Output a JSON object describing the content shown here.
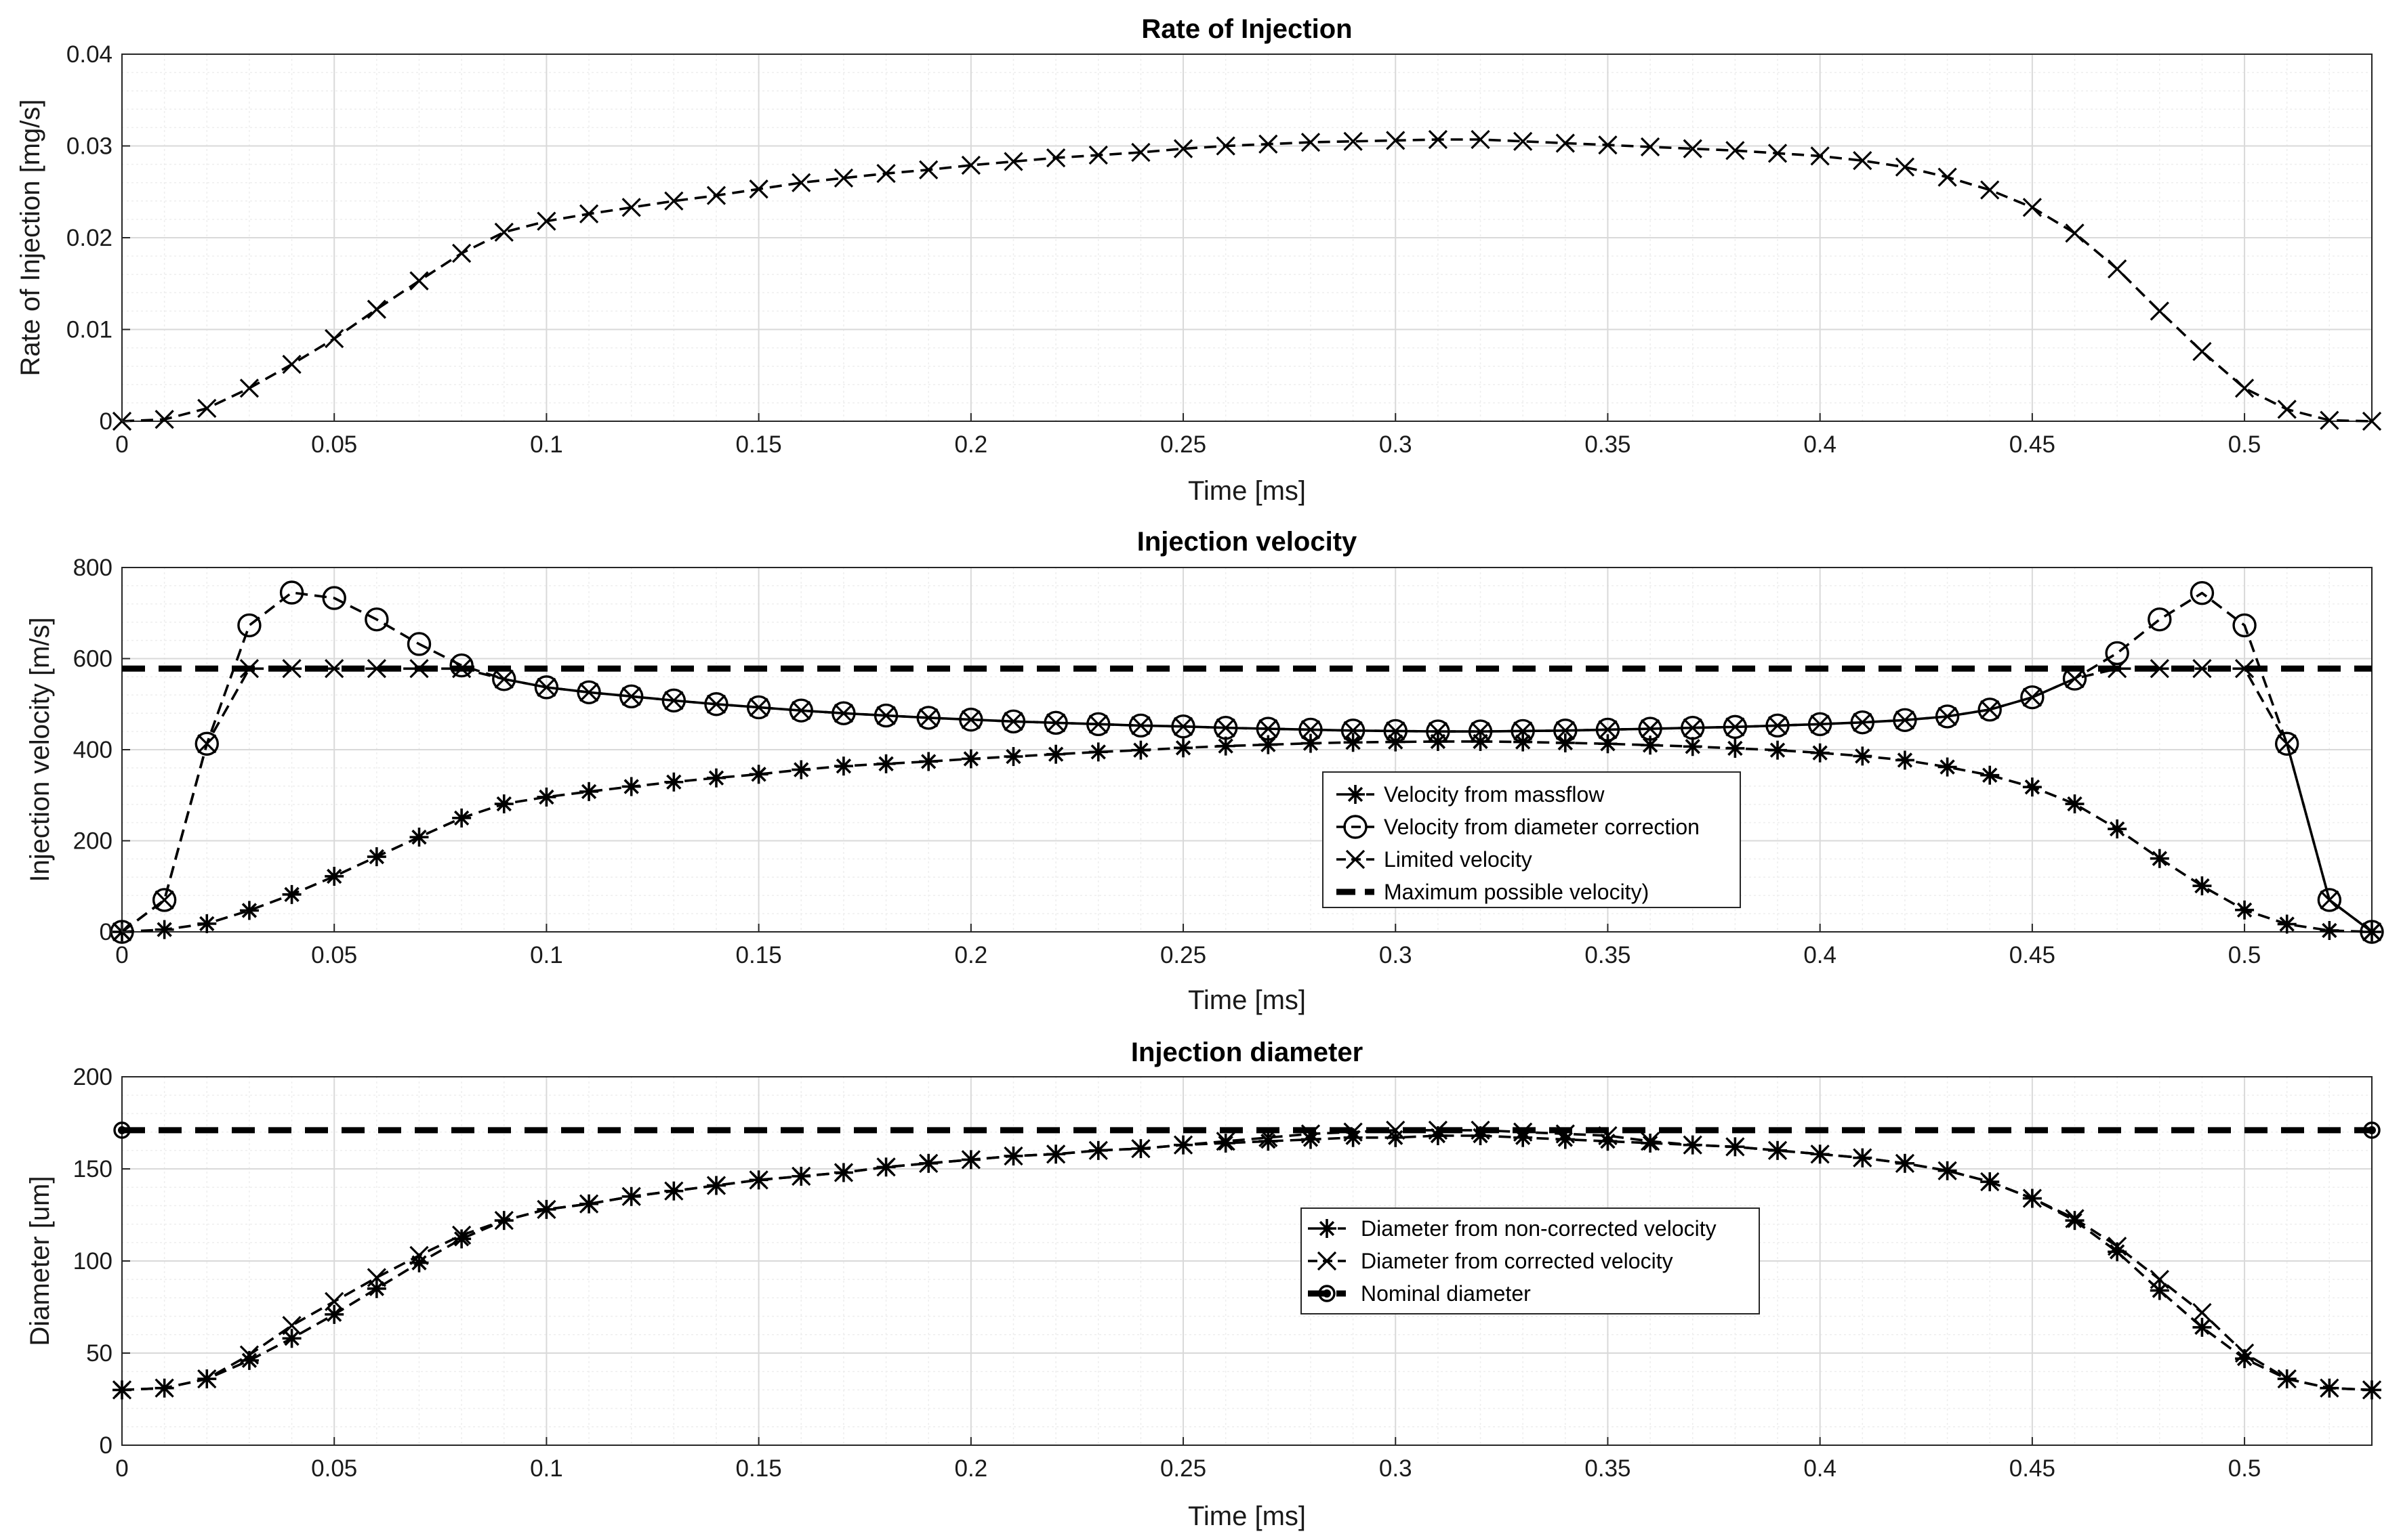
{
  "colors": {
    "line": "#000000",
    "grid_major": "#d9d9d9",
    "grid_minor": "#eeeeee",
    "axis": "#262626",
    "background": "#ffffff"
  },
  "chart_data": [
    {
      "type": "line",
      "title": "Rate of Injection",
      "xlabel": "Time [ms]",
      "ylabel": "Rate of Injection [mg/s]",
      "xlim": [
        0,
        0.53
      ],
      "ylim": [
        0,
        0.04
      ],
      "xticks": [
        0,
        0.05,
        0.1,
        0.15,
        0.2,
        0.25,
        0.3,
        0.35,
        0.4,
        0.45,
        0.5
      ],
      "xtick_labels": [
        "0",
        "0.05",
        "0.1",
        "0.15",
        "0.2",
        "0.25",
        "0.3",
        "0.35",
        "0.4",
        "0.45",
        "0.5"
      ],
      "yticks": [
        0,
        0.01,
        0.02,
        0.03,
        0.04
      ],
      "ytick_labels": [
        "0",
        "0.01",
        "0.02",
        "0.03",
        "0.04"
      ],
      "grid": true,
      "x": [
        0,
        0.01,
        0.02,
        0.03,
        0.04,
        0.05,
        0.06,
        0.07,
        0.08,
        0.09,
        0.1,
        0.11,
        0.12,
        0.13,
        0.14,
        0.15,
        0.16,
        0.17,
        0.18,
        0.19,
        0.2,
        0.21,
        0.22,
        0.23,
        0.24,
        0.25,
        0.26,
        0.27,
        0.28,
        0.29,
        0.3,
        0.31,
        0.32,
        0.33,
        0.34,
        0.35,
        0.36,
        0.37,
        0.38,
        0.39,
        0.4,
        0.41,
        0.42,
        0.43,
        0.44,
        0.45,
        0.46,
        0.47,
        0.48,
        0.49,
        0.5,
        0.51,
        0.52,
        0.53
      ],
      "series": [
        {
          "name": "Rate of Injection",
          "marker": "x",
          "dash": "dashed",
          "values": [
            0,
            0.0002,
            0.0014,
            0.0036,
            0.0062,
            0.009,
            0.0122,
            0.0153,
            0.0183,
            0.0206,
            0.0218,
            0.0226,
            0.0233,
            0.024,
            0.0246,
            0.0253,
            0.026,
            0.0265,
            0.027,
            0.0274,
            0.0279,
            0.0283,
            0.0287,
            0.029,
            0.0293,
            0.0297,
            0.03,
            0.0302,
            0.0304,
            0.0305,
            0.0306,
            0.0307,
            0.0307,
            0.0305,
            0.0303,
            0.0301,
            0.0299,
            0.0297,
            0.0295,
            0.0292,
            0.0289,
            0.0284,
            0.0277,
            0.0266,
            0.0252,
            0.0233,
            0.0205,
            0.0166,
            0.012,
            0.0076,
            0.0036,
            0.0013,
            0.0001,
            0
          ]
        }
      ]
    },
    {
      "type": "line",
      "title": "Injection velocity",
      "xlabel": "Time [ms]",
      "ylabel": "Injection velocity [m/s]",
      "xlim": [
        0,
        0.53
      ],
      "ylim": [
        0,
        800
      ],
      "xticks": [
        0,
        0.05,
        0.1,
        0.15,
        0.2,
        0.25,
        0.3,
        0.35,
        0.4,
        0.45,
        0.5
      ],
      "xtick_labels": [
        "0",
        "0.05",
        "0.1",
        "0.15",
        "0.2",
        "0.25",
        "0.3",
        "0.35",
        "0.4",
        "0.45",
        "0.5"
      ],
      "yticks": [
        0,
        200,
        400,
        600,
        800
      ],
      "ytick_labels": [
        "0",
        "200",
        "400",
        "600",
        "800"
      ],
      "grid": true,
      "legend_position": "lower-center",
      "x": [
        0,
        0.01,
        0.02,
        0.03,
        0.04,
        0.05,
        0.06,
        0.07,
        0.08,
        0.09,
        0.1,
        0.11,
        0.12,
        0.13,
        0.14,
        0.15,
        0.16,
        0.17,
        0.18,
        0.19,
        0.2,
        0.21,
        0.22,
        0.23,
        0.24,
        0.25,
        0.26,
        0.27,
        0.28,
        0.29,
        0.3,
        0.31,
        0.32,
        0.33,
        0.34,
        0.35,
        0.36,
        0.37,
        0.38,
        0.39,
        0.4,
        0.41,
        0.42,
        0.43,
        0.44,
        0.45,
        0.46,
        0.47,
        0.48,
        0.49,
        0.5,
        0.51,
        0.52,
        0.53
      ],
      "series": [
        {
          "name": "Velocity from massflow",
          "marker": "star",
          "dash": "dashed",
          "values": [
            0,
            5,
            18,
            47,
            82,
            122,
            165,
            208,
            250,
            281,
            296,
            308,
            319,
            329,
            338,
            346,
            356,
            364,
            369,
            374,
            380,
            385,
            390,
            395,
            399,
            404,
            408,
            411,
            414,
            416,
            417,
            418,
            418,
            417,
            415,
            413,
            410,
            407,
            403,
            399,
            393,
            386,
            377,
            362,
            344,
            318,
            281,
            226,
            161,
            101,
            48,
            17,
            3,
            0
          ]
        },
        {
          "name": "Velocity from diameter correction",
          "marker": "circle",
          "dash": "dashed",
          "values": [
            0,
            70,
            413,
            673,
            745,
            733,
            686,
            632,
            585,
            555,
            537,
            526,
            517,
            508,
            500,
            493,
            486,
            480,
            475,
            470,
            466,
            462,
            459,
            456,
            453,
            451,
            448,
            446,
            444,
            442,
            441,
            440,
            440,
            441,
            442,
            444,
            446,
            448,
            450,
            453,
            456,
            460,
            465,
            473,
            488,
            515,
            556,
            612,
            686,
            744,
            673,
            413,
            70,
            0
          ]
        },
        {
          "name": "Limited velocity",
          "marker": "x",
          "dash": "dashed",
          "values": [
            0,
            70,
            413,
            578,
            578,
            578,
            578,
            578,
            578,
            555,
            537,
            526,
            517,
            508,
            500,
            493,
            486,
            480,
            475,
            470,
            466,
            462,
            459,
            456,
            453,
            451,
            448,
            446,
            444,
            442,
            441,
            440,
            440,
            441,
            442,
            444,
            446,
            448,
            450,
            453,
            456,
            460,
            465,
            473,
            488,
            515,
            556,
            578,
            578,
            578,
            578,
            413,
            70,
            0
          ]
        },
        {
          "name": "Maximum possible velocity)",
          "marker": "none",
          "dash": "thick-dashed",
          "x": [
            0,
            0.53
          ],
          "values": [
            578,
            578
          ]
        }
      ]
    },
    {
      "type": "line",
      "title": "Injection diameter",
      "xlabel": "Time [ms]",
      "ylabel": "Diameter [um]",
      "xlim": [
        0,
        0.53
      ],
      "ylim": [
        0,
        200
      ],
      "xticks": [
        0,
        0.05,
        0.1,
        0.15,
        0.2,
        0.25,
        0.3,
        0.35,
        0.4,
        0.45,
        0.5
      ],
      "xtick_labels": [
        "0",
        "0.05",
        "0.1",
        "0.15",
        "0.2",
        "0.25",
        "0.3",
        "0.35",
        "0.4",
        "0.45",
        "0.5"
      ],
      "yticks": [
        0,
        50,
        100,
        150,
        200
      ],
      "ytick_labels": [
        "0",
        "50",
        "100",
        "150",
        "200"
      ],
      "grid": true,
      "legend_position": "center",
      "x": [
        0,
        0.01,
        0.02,
        0.03,
        0.04,
        0.05,
        0.06,
        0.07,
        0.08,
        0.09,
        0.1,
        0.11,
        0.12,
        0.13,
        0.14,
        0.15,
        0.16,
        0.17,
        0.18,
        0.19,
        0.2,
        0.21,
        0.22,
        0.23,
        0.24,
        0.25,
        0.26,
        0.27,
        0.28,
        0.29,
        0.3,
        0.31,
        0.32,
        0.33,
        0.34,
        0.35,
        0.36,
        0.37,
        0.38,
        0.39,
        0.4,
        0.41,
        0.42,
        0.43,
        0.44,
        0.45,
        0.46,
        0.47,
        0.48,
        0.49,
        0.5,
        0.51,
        0.52,
        0.53
      ],
      "series": [
        {
          "name": "Diameter from non-corrected velocity",
          "marker": "star",
          "dash": "dashed",
          "values": [
            30,
            31,
            36,
            46,
            58,
            71,
            85,
            99,
            112,
            122,
            128,
            131,
            135,
            138,
            141,
            144,
            146,
            148,
            151,
            153,
            155,
            157,
            158,
            160,
            161,
            163,
            164,
            165,
            166,
            167,
            167,
            168,
            168,
            167,
            166,
            165,
            164,
            163,
            162,
            160,
            158,
            156,
            153,
            149,
            143,
            134,
            122,
            105,
            84,
            64,
            47,
            36,
            31,
            30
          ]
        },
        {
          "name": "Diameter from corrected velocity",
          "marker": "x",
          "dash": "dashed",
          "values": [
            30,
            31,
            36,
            49,
            65,
            78,
            91,
            103,
            114,
            122,
            128,
            131,
            135,
            138,
            141,
            144,
            146,
            148,
            151,
            153,
            155,
            157,
            158,
            160,
            161,
            163,
            165,
            167,
            169,
            170,
            171,
            171,
            171,
            170,
            169,
            168,
            165,
            163,
            162,
            160,
            158,
            156,
            153,
            149,
            143,
            134,
            123,
            108,
            90,
            72,
            50,
            36,
            31,
            30
          ]
        },
        {
          "name": "Nominal diameter",
          "marker": "filled-circle",
          "dash": "thick-dashed",
          "x": [
            0,
            0.53
          ],
          "values": [
            171,
            171
          ]
        }
      ]
    }
  ]
}
